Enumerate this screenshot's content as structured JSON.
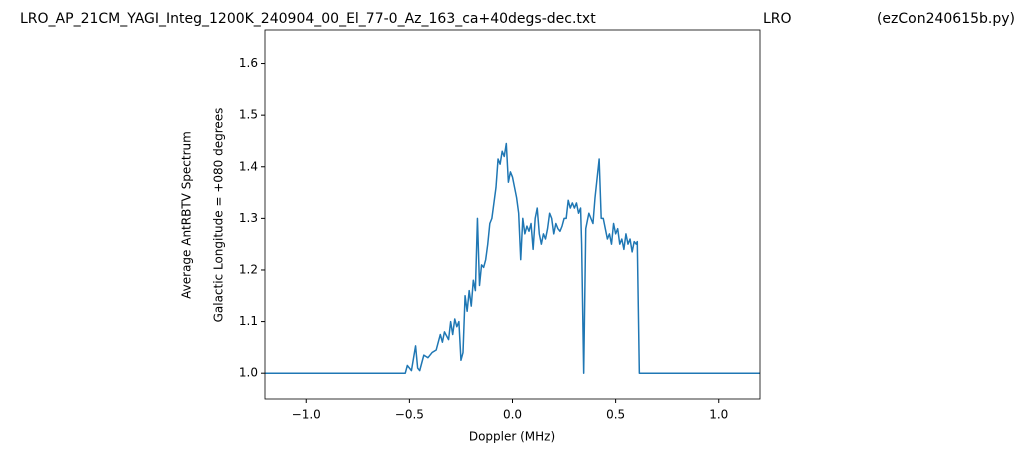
{
  "chart_data": {
    "type": "line",
    "titles": [
      "LRO_AP_21CM_YAGI_Integ_1200K_240904_00_El_77-0_Az_163_ca+40degs-dec.txt",
      "LRO",
      "(ezCon240615b.py)"
    ],
    "xlabel": "Doppler (MHz)",
    "ylabel": [
      "Average AntRBTV Spectrum",
      "Galactic Longitude = +080 degrees"
    ],
    "color": "#1f77b4",
    "xlim": [
      -1.2,
      1.2
    ],
    "ylim": [
      0.95,
      1.665
    ],
    "xticks": [
      {
        "value": -1.0,
        "label": "−1.0"
      },
      {
        "value": -0.5,
        "label": "−0.5"
      },
      {
        "value": 0.0,
        "label": "0.0"
      },
      {
        "value": 0.5,
        "label": "0.5"
      },
      {
        "value": 1.0,
        "label": "1.0"
      }
    ],
    "yticks": [
      {
        "value": 1.0,
        "label": "1.0"
      },
      {
        "value": 1.1,
        "label": "1.1"
      },
      {
        "value": 1.2,
        "label": "1.2"
      },
      {
        "value": 1.3,
        "label": "1.3"
      },
      {
        "value": 1.4,
        "label": "1.4"
      },
      {
        "value": 1.5,
        "label": "1.5"
      },
      {
        "value": 1.6,
        "label": "1.6"
      }
    ],
    "x": [
      -1.2,
      -0.52,
      -0.51,
      -0.49,
      -0.47,
      -0.46,
      -0.45,
      -0.43,
      -0.41,
      -0.39,
      -0.37,
      -0.35,
      -0.34,
      -0.33,
      -0.31,
      -0.3,
      -0.29,
      -0.28,
      -0.27,
      -0.26,
      -0.25,
      -0.24,
      -0.23,
      -0.22,
      -0.21,
      -0.2,
      -0.19,
      -0.18,
      -0.17,
      -0.16,
      -0.15,
      -0.14,
      -0.13,
      -0.12,
      -0.11,
      -0.1,
      -0.09,
      -0.08,
      -0.07,
      -0.06,
      -0.05,
      -0.04,
      -0.03,
      -0.02,
      -0.01,
      0.0,
      0.01,
      0.02,
      0.03,
      0.04,
      0.05,
      0.06,
      0.07,
      0.08,
      0.09,
      0.1,
      0.11,
      0.12,
      0.13,
      0.14,
      0.15,
      0.16,
      0.17,
      0.18,
      0.19,
      0.2,
      0.21,
      0.22,
      0.23,
      0.24,
      0.25,
      0.26,
      0.27,
      0.28,
      0.29,
      0.3,
      0.31,
      0.32,
      0.33,
      0.335,
      0.345,
      0.355,
      0.37,
      0.38,
      0.39,
      0.4,
      0.42,
      0.43,
      0.44,
      0.45,
      0.46,
      0.47,
      0.48,
      0.49,
      0.5,
      0.51,
      0.52,
      0.53,
      0.54,
      0.55,
      0.56,
      0.57,
      0.58,
      0.59,
      0.6,
      0.605,
      0.615,
      1.2
    ],
    "values": [
      1.0,
      1.0,
      1.015,
      1.005,
      1.053,
      1.01,
      1.005,
      1.035,
      1.03,
      1.04,
      1.045,
      1.075,
      1.06,
      1.08,
      1.065,
      1.1,
      1.075,
      1.105,
      1.09,
      1.1,
      1.025,
      1.04,
      1.15,
      1.12,
      1.16,
      1.13,
      1.18,
      1.16,
      1.3,
      1.17,
      1.21,
      1.205,
      1.22,
      1.25,
      1.29,
      1.3,
      1.33,
      1.36,
      1.415,
      1.405,
      1.43,
      1.42,
      1.445,
      1.37,
      1.39,
      1.38,
      1.36,
      1.34,
      1.31,
      1.22,
      1.3,
      1.27,
      1.285,
      1.275,
      1.29,
      1.24,
      1.3,
      1.32,
      1.27,
      1.25,
      1.27,
      1.26,
      1.28,
      1.31,
      1.3,
      1.27,
      1.29,
      1.28,
      1.275,
      1.285,
      1.3,
      1.3,
      1.335,
      1.32,
      1.33,
      1.32,
      1.33,
      1.31,
      1.32,
      1.25,
      1.0,
      1.28,
      1.31,
      1.3,
      1.29,
      1.34,
      1.415,
      1.3,
      1.3,
      1.28,
      1.26,
      1.27,
      1.25,
      1.29,
      1.27,
      1.28,
      1.25,
      1.26,
      1.24,
      1.27,
      1.25,
      1.26,
      1.235,
      1.255,
      1.25,
      1.255,
      1.0,
      1.0
    ]
  }
}
